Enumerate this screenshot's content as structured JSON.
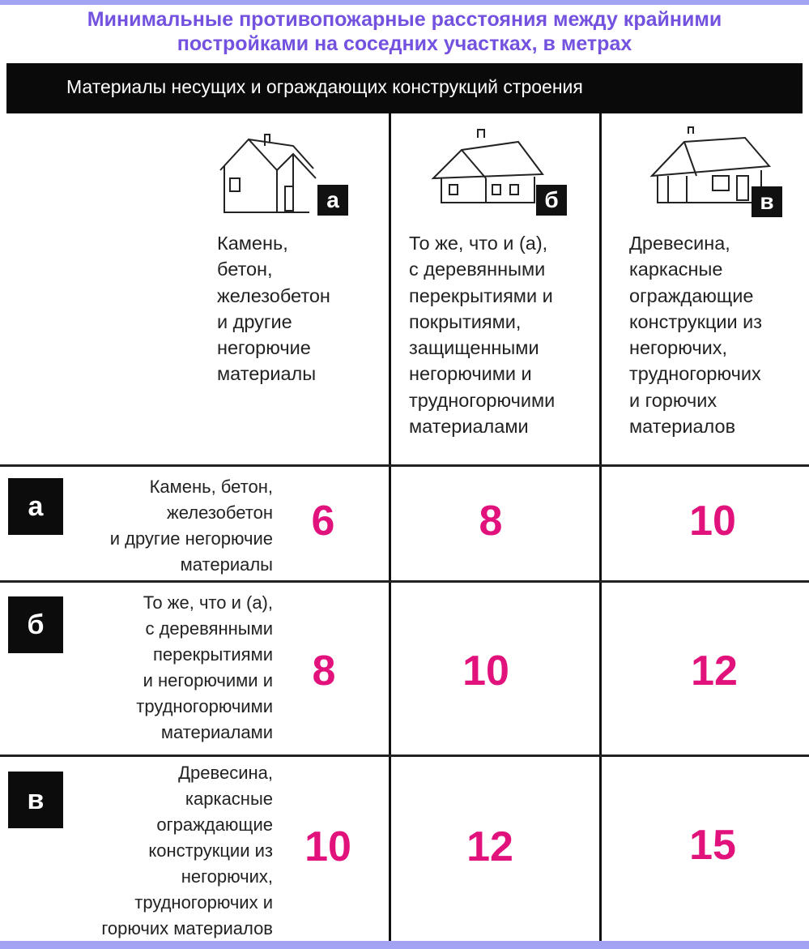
{
  "title": [
    "Минимальные противопожарные расстояния между крайними",
    "постройками на соседних участках, в метрах"
  ],
  "header": "Материалы несущих и ограждающих конструкций строения",
  "columns": [
    {
      "letter": "а",
      "icon": "stone-house-icon",
      "lines": [
        "Камень,",
        "бетон,",
        "железобетон",
        "и другие",
        "негорючие",
        "материалы"
      ]
    },
    {
      "letter": "б",
      "icon": "cottage-house-icon",
      "lines": [
        "То же, что и (а),",
        "с деревянными",
        "перекрытиями и",
        "покрытиями,",
        "защищенными",
        "негорючими и",
        "трудногорючими",
        "материалами"
      ]
    },
    {
      "letter": "в",
      "icon": "wooden-house-icon",
      "lines": [
        "Древесина,",
        "каркасные",
        "ограждающие",
        "конструкции из",
        "негорючих,",
        "трудногорючих",
        "и горючих",
        "материалов"
      ]
    }
  ],
  "rows": [
    {
      "letter": "а",
      "lines": [
        "Камень, бетон,",
        "железобетон",
        "и другие негорючие",
        "материалы"
      ],
      "values": [
        "6",
        "8",
        "10"
      ]
    },
    {
      "letter": "б",
      "lines": [
        "То же, что и (а),",
        "с деревянными",
        "перекрытиями",
        "и негорючими и",
        "трудногорючими",
        "материалами"
      ],
      "values": [
        "8",
        "10",
        "12"
      ]
    },
    {
      "letter": "в",
      "lines": [
        "Древесина,",
        "каркасные",
        "ограждающие",
        "конструкции из",
        "негорючих,",
        "трудногорючих и",
        "горючих материалов"
      ],
      "values": [
        "10",
        "12",
        "15"
      ]
    }
  ],
  "colors": {
    "title": "#7352e0",
    "values": "#e2127c",
    "band": "#a3a3f3"
  }
}
